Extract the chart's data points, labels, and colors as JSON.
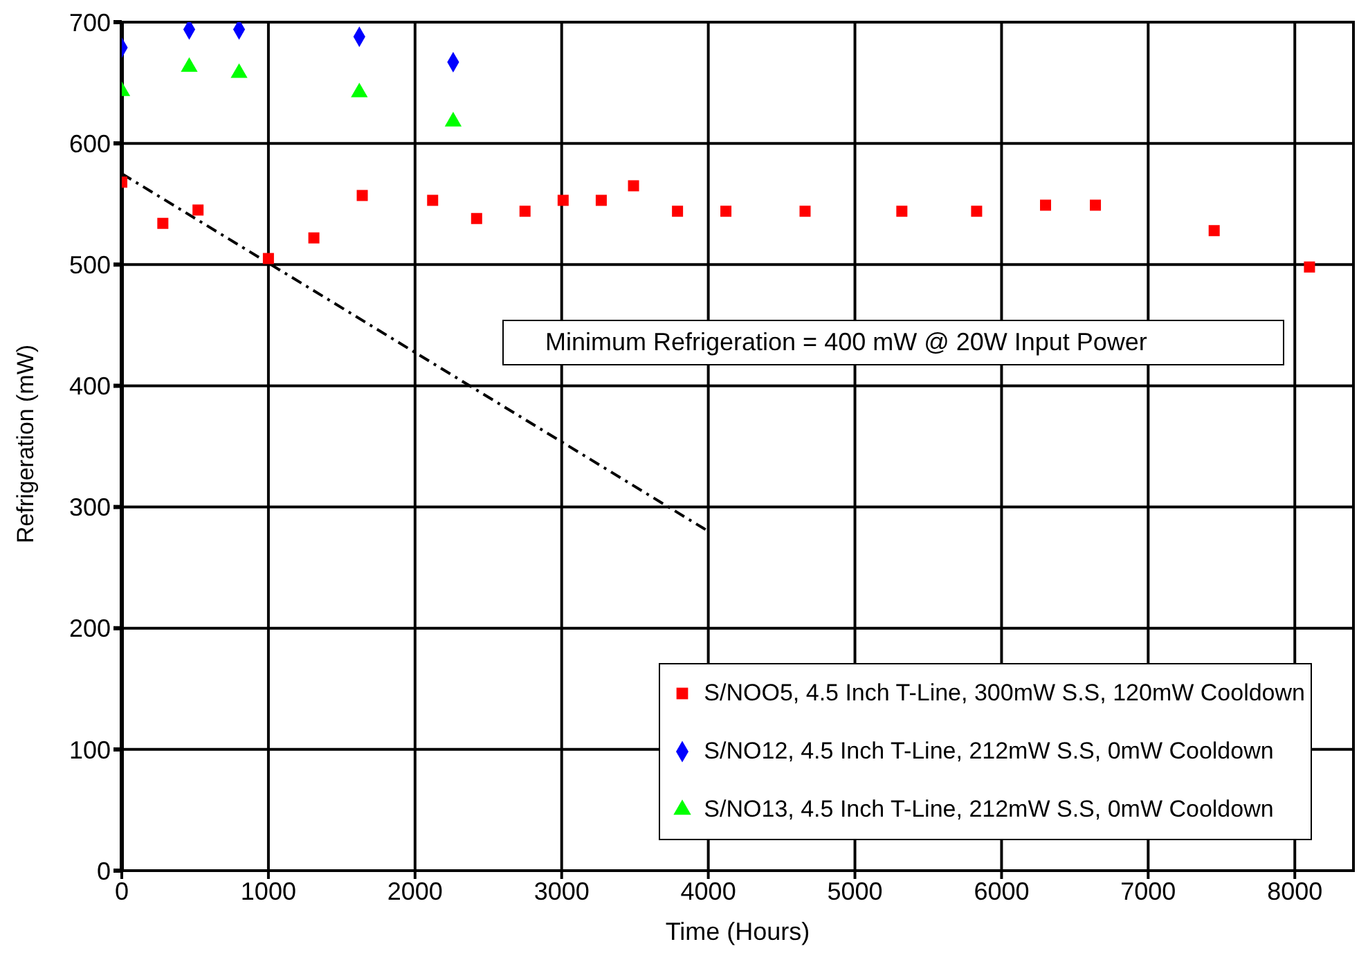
{
  "chart_data": {
    "type": "scatter",
    "xlabel": "Time (Hours)",
    "ylabel": "Refrigeration (mW)",
    "xlim": [
      0,
      8400
    ],
    "xticks": [
      0,
      1000,
      2000,
      3000,
      4000,
      5000,
      6000,
      7000,
      8000
    ],
    "ylim": [
      0,
      700
    ],
    "yticks": [
      0,
      100,
      200,
      300,
      400,
      500,
      600,
      700
    ],
    "grid": true,
    "legend": "bottom right",
    "annotations": [
      "Minimum Refrigeration = 400 mW @ 20W Input Power"
    ],
    "series": [
      {
        "name": "S/NOO5, 4.5 Inch T-Line, 300mW S.S, 120mW Cooldown",
        "color": "#ff0000",
        "marker": "square",
        "x": [
          0,
          280,
          520,
          1000,
          1310,
          1640,
          2120,
          2420,
          2750,
          3010,
          3270,
          3490,
          3790,
          4120,
          4660,
          5320,
          5830,
          6300,
          6640,
          7450,
          8100
        ],
        "values": [
          568,
          534,
          545,
          505,
          522,
          557,
          553,
          538,
          544,
          553,
          553,
          565,
          544,
          544,
          544,
          544,
          544,
          549,
          549,
          528,
          498
        ]
      },
      {
        "name": "S/NO12,  4.5 Inch T-Line, 212mW S.S, 0mW Cooldown",
        "color": "#0000ff",
        "marker": "diamond",
        "x": [
          0,
          460,
          800,
          1620,
          2260
        ],
        "values": [
          679,
          694,
          694,
          688,
          667
        ]
      },
      {
        "name": "S/NO13,  4.5 Inch T-Line, 212mW S.S, 0mW Cooldown",
        "color": "#00ff00",
        "marker": "triangle",
        "x": [
          0,
          460,
          800,
          1620,
          2260
        ],
        "values": [
          643,
          663,
          658,
          642,
          618
        ]
      },
      {
        "type": "line",
        "color": "#000000",
        "line_style": "dashed",
        "marker": "none",
        "x": [
          0,
          4000
        ],
        "values": [
          575,
          280
        ]
      }
    ]
  }
}
